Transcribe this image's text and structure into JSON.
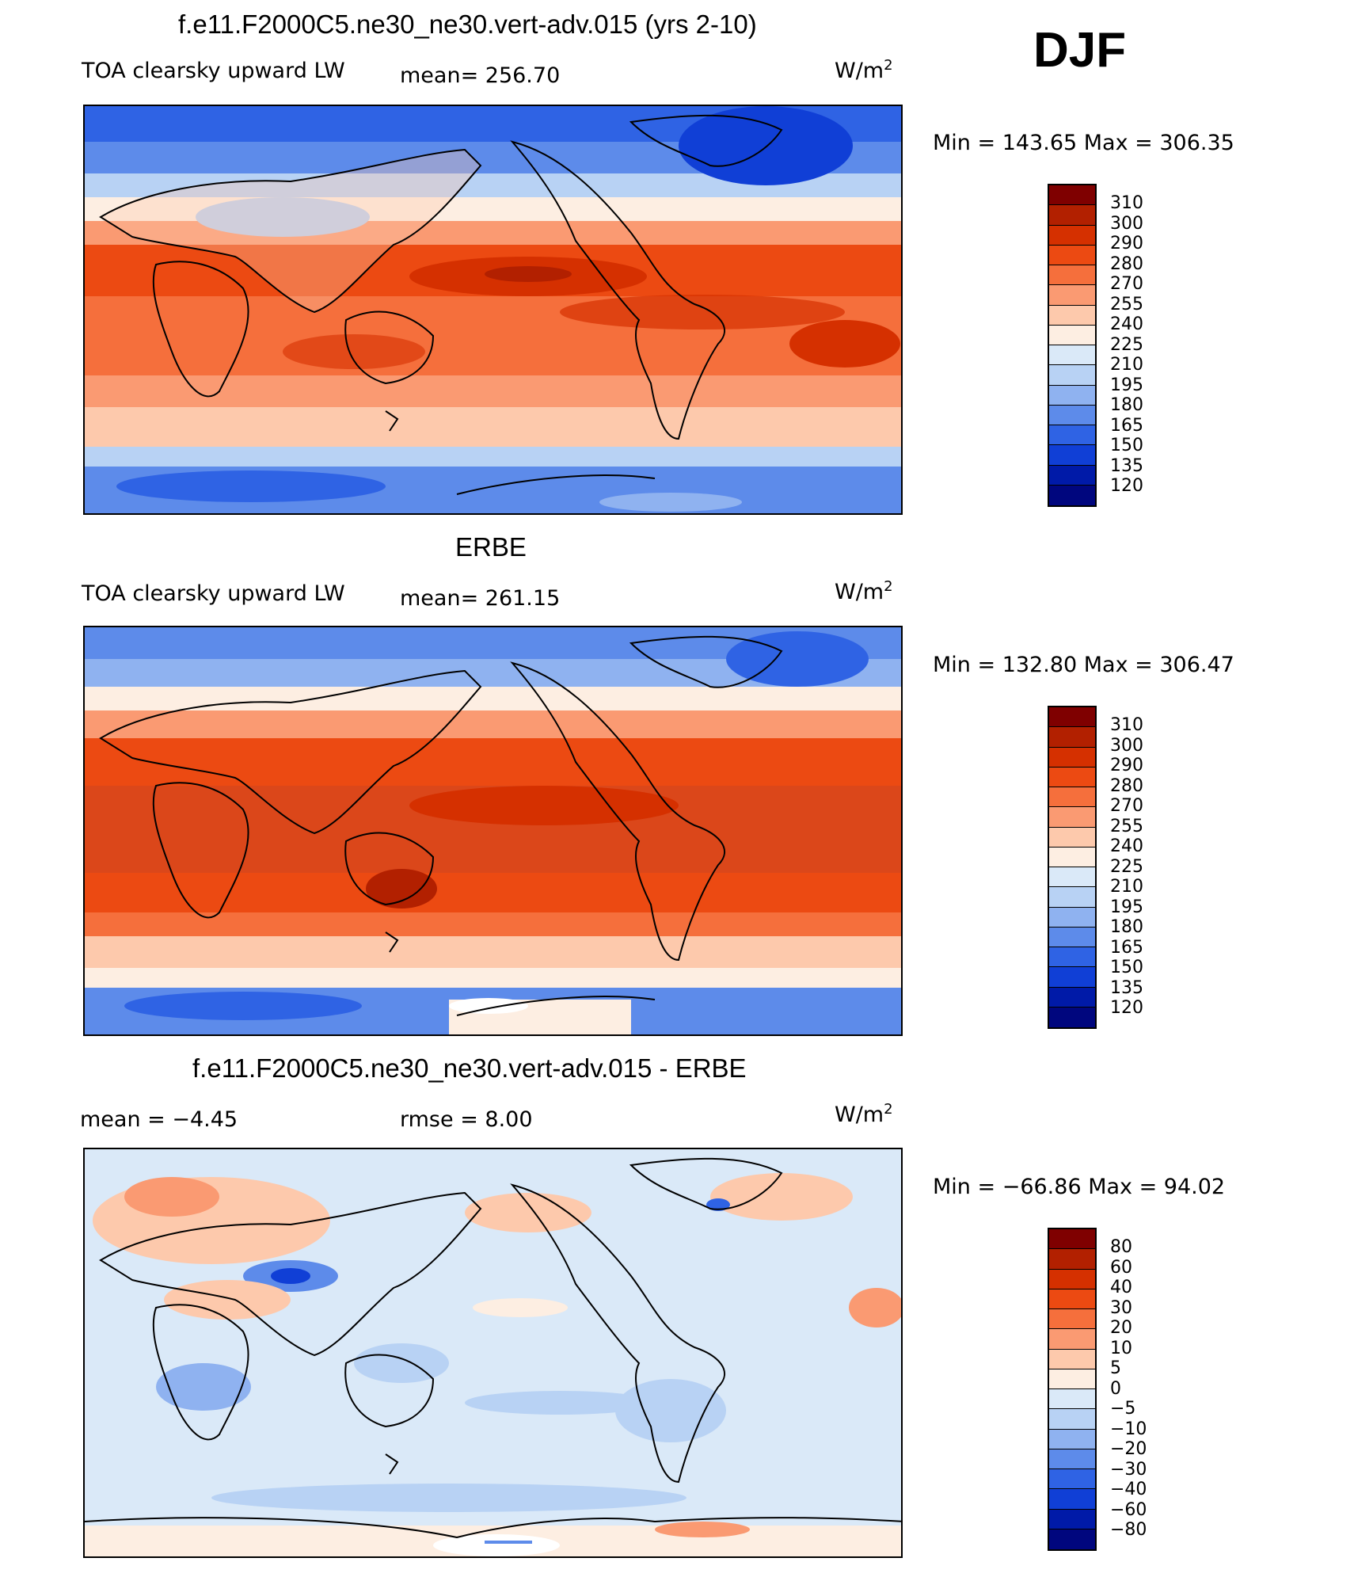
{
  "season": "DJF",
  "panels": [
    {
      "title": "f.e11.F2000C5.ne30_ne30.vert-adv.015 (yrs 2-10)",
      "variable": "TOA clearsky upward LW",
      "stat1": "mean=  256.70",
      "stat2": "",
      "units": "W/m",
      "units_sup": "2",
      "minmax": "Min  =  143.65  Max  =  306.35",
      "colorbar_labels": [
        "310",
        "300",
        "290",
        "280",
        "270",
        "255",
        "240",
        "225",
        "210",
        "195",
        "180",
        "165",
        "150",
        "135",
        "120"
      ],
      "colors": [
        "#7f0000",
        "#b22000",
        "#d53000",
        "#ec4a12",
        "#f56f3c",
        "#fa9a72",
        "#fdc9ac",
        "#fdeee2",
        "#dae9f8",
        "#b8d2f4",
        "#8fb2f0",
        "#5d8bea",
        "#2f63e4",
        "#103fd6",
        "#001aa8",
        "#00067e"
      ]
    },
    {
      "title": "ERBE",
      "variable": "TOA clearsky upward LW",
      "stat1": "mean=  261.15",
      "stat2": "",
      "units": "W/m",
      "units_sup": "2",
      "minmax": "Min  =  132.80  Max  =  306.47",
      "colorbar_labels": [
        "310",
        "300",
        "290",
        "280",
        "270",
        "255",
        "240",
        "225",
        "210",
        "195",
        "180",
        "165",
        "150",
        "135",
        "120"
      ],
      "colors": [
        "#7f0000",
        "#b22000",
        "#d53000",
        "#ec4a12",
        "#f56f3c",
        "#fa9a72",
        "#fdc9ac",
        "#fdeee2",
        "#dae9f8",
        "#b8d2f4",
        "#8fb2f0",
        "#5d8bea",
        "#2f63e4",
        "#103fd6",
        "#001aa8",
        "#00067e"
      ]
    },
    {
      "title": "f.e11.F2000C5.ne30_ne30.vert-adv.015 - ERBE",
      "variable": "",
      "stat1": "mean  =     −4.45",
      "stat2": "rmse  =      8.00",
      "units": "W/m",
      "units_sup": "2",
      "minmax": "Min  =  −66.86  Max  =     94.02",
      "colorbar_labels": [
        "80",
        "60",
        "40",
        "30",
        "20",
        "10",
        "5",
        "0",
        "−5",
        "−10",
        "−20",
        "−30",
        "−40",
        "−60",
        "−80"
      ],
      "colors": [
        "#7f0000",
        "#b22000",
        "#d53000",
        "#ec4a12",
        "#f56f3c",
        "#fa9a72",
        "#fdc9ac",
        "#fdeee2",
        "#dae9f8",
        "#b8d2f4",
        "#8fb2f0",
        "#5d8bea",
        "#2f63e4",
        "#103fd6",
        "#001aa8",
        "#00067e"
      ]
    }
  ]
}
